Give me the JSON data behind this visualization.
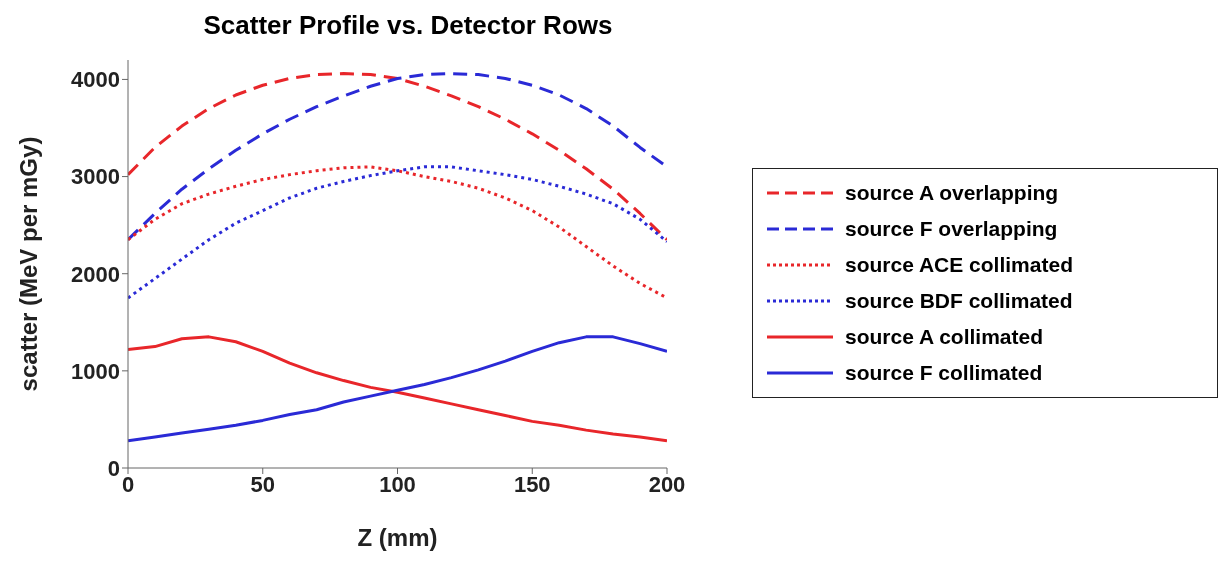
{
  "chart_data": {
    "type": "line",
    "title": "Scatter Profile vs. Detector Rows",
    "xlabel": "Z (mm)",
    "ylabel": "scatter (MeV per mGy)",
    "x": [
      0,
      10,
      20,
      30,
      40,
      50,
      60,
      70,
      80,
      90,
      100,
      110,
      120,
      130,
      140,
      150,
      160,
      170,
      180,
      190,
      200
    ],
    "series": [
      {
        "name": "source A overlapping",
        "color": "#e8262a",
        "line_style": "dashed",
        "values": [
          3020,
          3300,
          3520,
          3700,
          3840,
          3940,
          4010,
          4050,
          4060,
          4050,
          4010,
          3930,
          3830,
          3720,
          3590,
          3440,
          3270,
          3080,
          2870,
          2620,
          2350
        ]
      },
      {
        "name": "source F overlapping",
        "color": "#2a2ad6",
        "line_style": "dashed",
        "values": [
          2350,
          2620,
          2870,
          3080,
          3270,
          3440,
          3590,
          3720,
          3830,
          3930,
          4010,
          4050,
          4060,
          4050,
          4010,
          3940,
          3840,
          3700,
          3520,
          3300,
          3100
        ]
      },
      {
        "name": "source ACE collimated",
        "color": "#e8262a",
        "line_style": "dotted",
        "values": [
          2350,
          2560,
          2720,
          2820,
          2900,
          2970,
          3020,
          3060,
          3090,
          3100,
          3060,
          3000,
          2950,
          2880,
          2780,
          2650,
          2480,
          2280,
          2080,
          1900,
          1750
        ]
      },
      {
        "name": "source BDF collimated",
        "color": "#2a2ad6",
        "line_style": "dotted",
        "values": [
          1750,
          1950,
          2150,
          2350,
          2520,
          2650,
          2780,
          2880,
          2950,
          3010,
          3060,
          3100,
          3100,
          3060,
          3020,
          2970,
          2900,
          2820,
          2720,
          2560,
          2330
        ]
      },
      {
        "name": "source A collimated",
        "color": "#e8262a",
        "line_style": "solid",
        "values": [
          1220,
          1250,
          1330,
          1350,
          1300,
          1200,
          1080,
          980,
          900,
          830,
          780,
          720,
          660,
          600,
          540,
          480,
          440,
          390,
          350,
          320,
          280
        ]
      },
      {
        "name": "source F collimated",
        "color": "#2a2ad6",
        "line_style": "solid",
        "values": [
          280,
          320,
          360,
          400,
          440,
          490,
          550,
          600,
          680,
          740,
          800,
          860,
          930,
          1010,
          1100,
          1200,
          1290,
          1350,
          1350,
          1280,
          1200
        ]
      }
    ],
    "xlim": [
      0,
      200
    ],
    "xticks": [
      0,
      50,
      100,
      150,
      200
    ],
    "ylim": [
      0,
      4200
    ],
    "yticks": [
      0,
      1000,
      2000,
      3000,
      4000
    ],
    "grid": false,
    "legend": "right",
    "marker": "none"
  }
}
